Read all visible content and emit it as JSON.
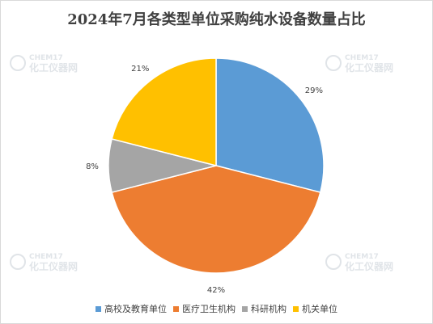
{
  "chart_data": {
    "type": "pie",
    "title": "2024年7月各类型单位采购纯水设备数量占比",
    "categories": [
      "高校及教育单位",
      "医疗卫生机构",
      "科研机构",
      "机关单位"
    ],
    "values": [
      29,
      42,
      8,
      21
    ],
    "labels": [
      "29%",
      "42%",
      "8%",
      "21%"
    ],
    "colors": [
      "#5B9BD5",
      "#ED7D31",
      "#A5A5A5",
      "#FFC000"
    ],
    "start_angle_deg": 0,
    "direction": "clockwise",
    "legend_position": "bottom"
  },
  "watermark": {
    "brand": "CHEM17",
    "tagline": "化工仪器网"
  }
}
